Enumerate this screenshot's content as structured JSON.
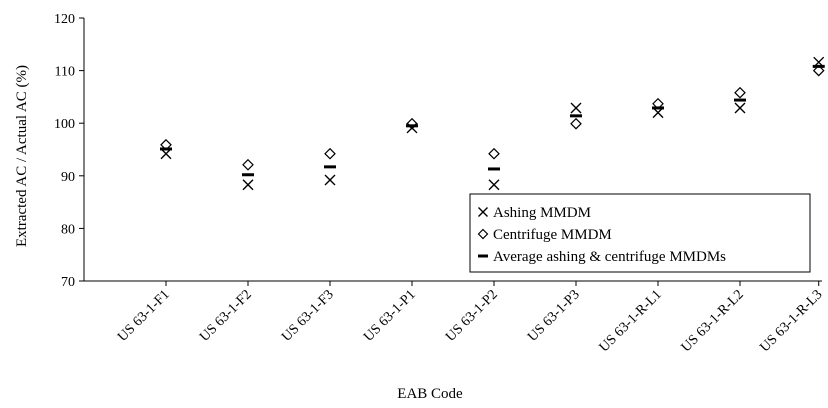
{
  "chart_data": {
    "type": "scatter",
    "xlabel": "EAB Code",
    "ylabel": "Extracted AC / Actual AC (%)",
    "ylim": [
      70,
      120
    ],
    "yticks": [
      70,
      80,
      90,
      100,
      110,
      120
    ],
    "grid": false,
    "legend_position": "bottom-right",
    "categories": [
      "US 63-1-F1",
      "US 63-1-F2",
      "US 63-1-F3",
      "US 63-1-P1",
      "US 63-1-P2",
      "US 63-1-P3",
      "US 63-1-R-L1",
      "US 63-1-R-L2",
      "US 63-1-R-L3"
    ],
    "series": [
      {
        "name": "Ashing MMDM",
        "marker": "x",
        "values": [
          94.2,
          88.3,
          89.2,
          99.1,
          88.3,
          102.9,
          102.0,
          102.9,
          111.6
        ]
      },
      {
        "name": "Centrifuge MMDM",
        "marker": "diamond",
        "values": [
          95.9,
          92.1,
          94.2,
          99.9,
          94.2,
          99.9,
          103.7,
          105.8,
          110.0
        ]
      },
      {
        "name": "Average ashing & centrifuge MMDMs",
        "marker": "dash",
        "values": [
          95.1,
          90.2,
          91.7,
          99.5,
          91.3,
          101.4,
          102.9,
          104.4,
          110.8
        ]
      }
    ]
  }
}
